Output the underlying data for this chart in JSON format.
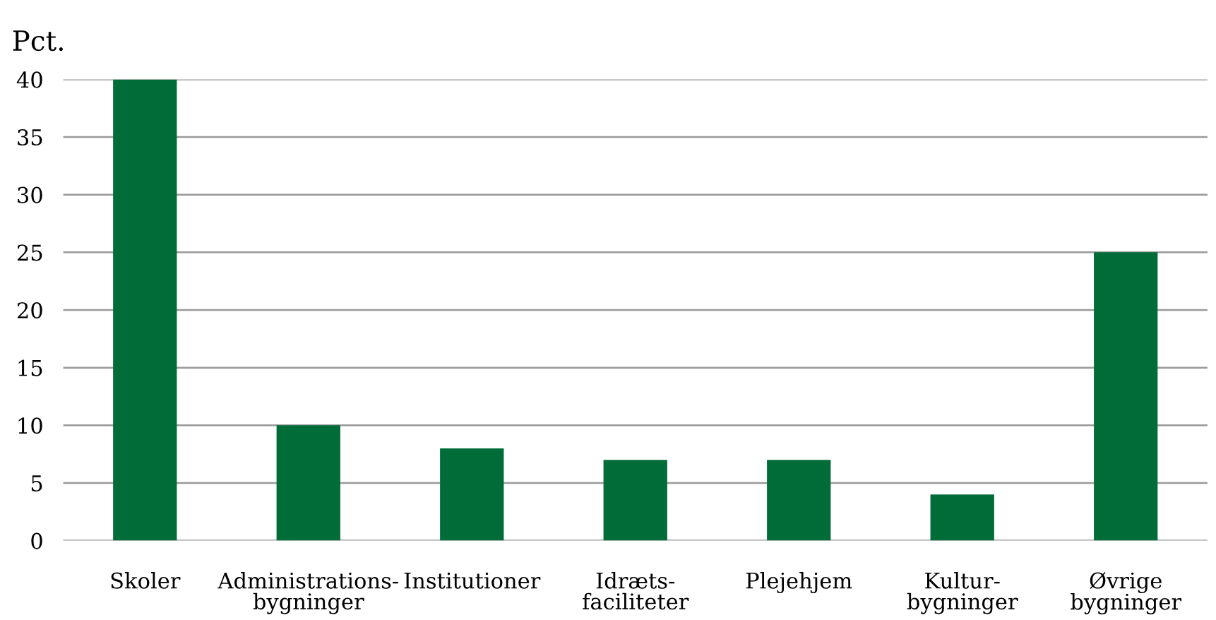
{
  "chart_data": {
    "type": "bar",
    "ylabel": "Pct.",
    "categories": [
      "Skoler",
      "Administrations-\nbygninger",
      "Institutioner",
      "Idræts-\nfaciliteter",
      "Plejehjem",
      "Kultur-\nbygninger",
      "Øvrige\nbygninger"
    ],
    "values": [
      40,
      10,
      8,
      7,
      7,
      4,
      25
    ],
    "color": "#006c37",
    "ylim": [
      0,
      40
    ],
    "yticks": [
      0,
      5,
      10,
      15,
      20,
      25,
      30,
      35,
      40
    ],
    "grid": "y"
  }
}
